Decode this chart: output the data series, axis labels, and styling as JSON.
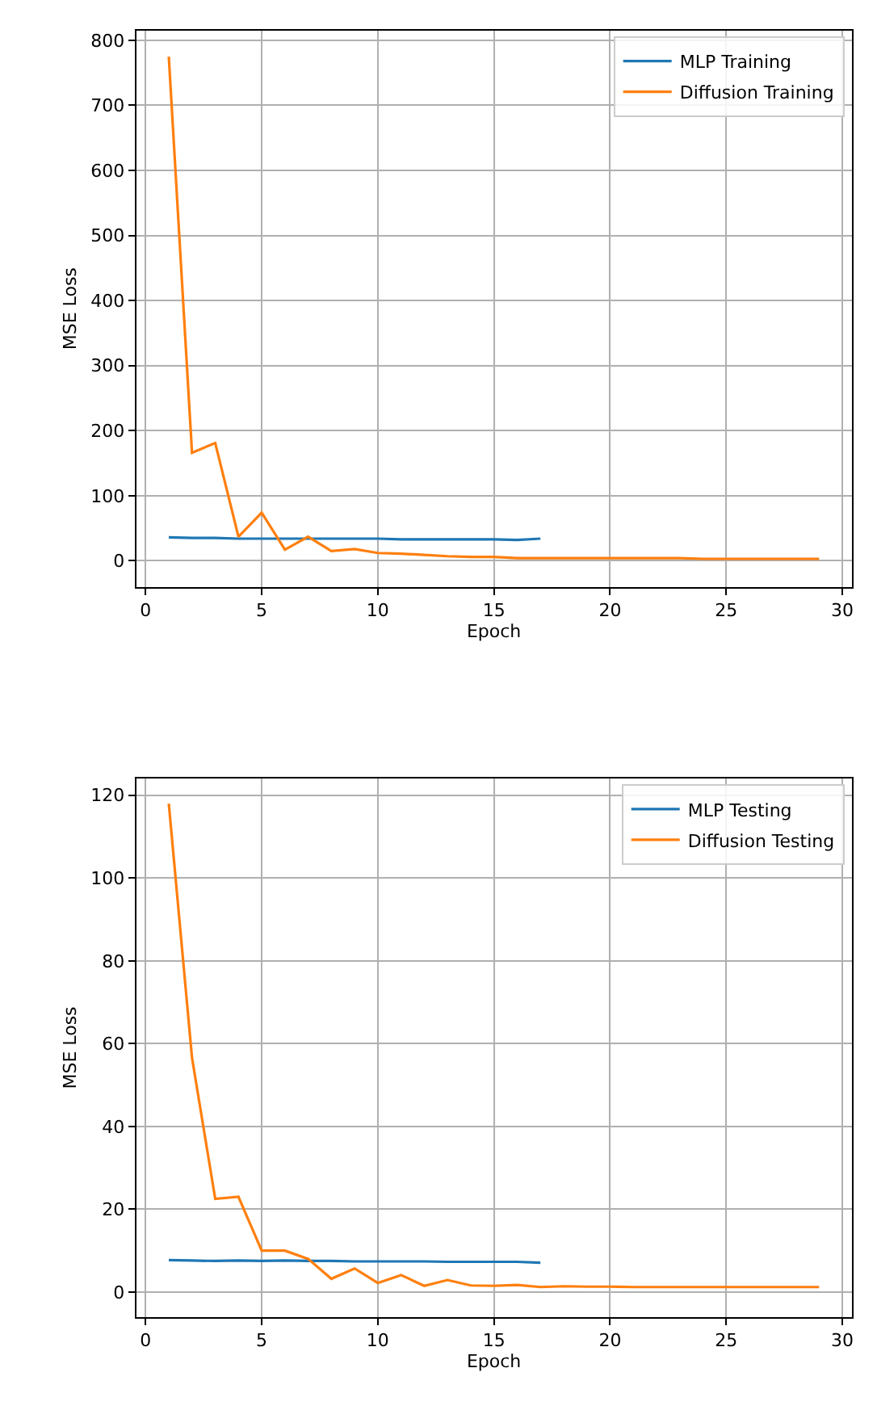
{
  "chart_data": [
    {
      "type": "line",
      "xlabel": "Epoch",
      "ylabel": "MSE Loss",
      "xlim": [
        -0.4,
        30.4
      ],
      "xticks": [
        0,
        5,
        10,
        15,
        20,
        25,
        30
      ],
      "ylim": [
        -40,
        815
      ],
      "yticks": [
        0,
        100,
        200,
        300,
        400,
        500,
        600,
        700,
        800
      ],
      "grid": true,
      "legend": "top right",
      "marker": "none",
      "line_style": "solid",
      "series": [
        {
          "name": "MLP Training",
          "color": "#1f77b4",
          "x": [
            1,
            2,
            3,
            4,
            5,
            6,
            7,
            8,
            9,
            10,
            11,
            12,
            13,
            14,
            15,
            16,
            17
          ],
          "values": [
            36,
            35,
            35,
            34,
            34,
            34,
            34,
            34,
            34,
            34,
            33,
            33,
            33,
            33,
            33,
            32,
            34
          ]
        },
        {
          "name": "Diffusion Training",
          "color": "#ff7f0e",
          "x": [
            1,
            2,
            3,
            4,
            5,
            6,
            7,
            8,
            9,
            10,
            11,
            12,
            13,
            14,
            15,
            16,
            17,
            18,
            19,
            20,
            21,
            22,
            23,
            24,
            25,
            26,
            27,
            28,
            29
          ],
          "values": [
            775,
            166,
            181,
            37,
            74,
            17,
            37,
            15,
            18,
            12,
            11,
            9,
            7,
            6,
            6,
            4,
            4,
            4,
            4,
            4,
            4,
            4,
            4,
            3,
            3,
            3,
            3,
            3,
            3
          ]
        }
      ]
    },
    {
      "type": "line",
      "xlabel": "Epoch",
      "ylabel": "MSE Loss",
      "xlim": [
        -0.4,
        30.4
      ],
      "xticks": [
        0,
        5,
        10,
        15,
        20,
        25,
        30
      ],
      "ylim": [
        -6,
        124
      ],
      "yticks": [
        0,
        20,
        40,
        60,
        80,
        100,
        120
      ],
      "grid": true,
      "legend": "top right",
      "marker": "none",
      "line_style": "solid",
      "series": [
        {
          "name": "MLP Testing",
          "color": "#1f77b4",
          "x": [
            1,
            2,
            3,
            4,
            5,
            6,
            7,
            8,
            9,
            10,
            11,
            12,
            13,
            14,
            15,
            16,
            17
          ],
          "values": [
            7.7,
            7.6,
            7.5,
            7.6,
            7.5,
            7.6,
            7.5,
            7.5,
            7.4,
            7.4,
            7.4,
            7.4,
            7.3,
            7.3,
            7.3,
            7.3,
            7.1
          ]
        },
        {
          "name": "Diffusion Testing",
          "color": "#ff7f0e",
          "x": [
            1,
            2,
            3,
            4,
            5,
            6,
            7,
            8,
            9,
            10,
            11,
            12,
            13,
            14,
            15,
            16,
            17,
            18,
            19,
            20,
            21,
            22,
            23,
            24,
            25,
            26,
            27,
            28,
            29
          ],
          "values": [
            118,
            56.6,
            22.5,
            23,
            10,
            10,
            8,
            3.2,
            5.7,
            2.2,
            4.1,
            1.5,
            2.9,
            1.6,
            1.5,
            1.7,
            1.2,
            1.4,
            1.3,
            1.3,
            1.2,
            1.2,
            1.2,
            1.2,
            1.2,
            1.2,
            1.2,
            1.2,
            1.2
          ]
        }
      ]
    }
  ]
}
